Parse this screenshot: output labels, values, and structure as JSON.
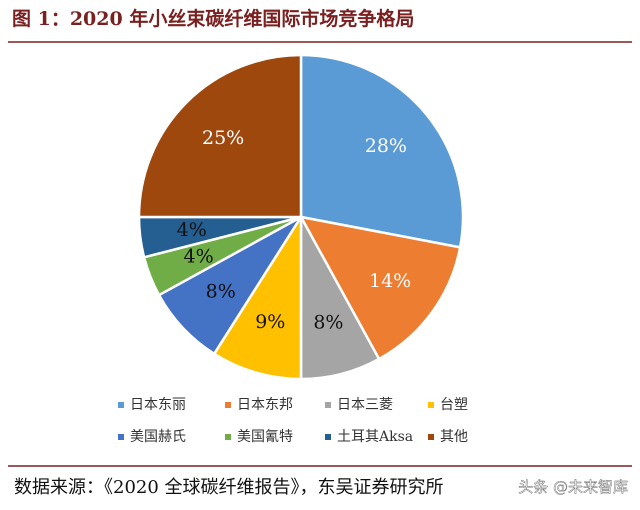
{
  "chart_data": {
    "type": "pie",
    "title": "图 1：2020 年小丝束碳纤维国际市场竞争格局",
    "categories": [
      "日本东丽",
      "日本东邦",
      "日本三菱",
      "台塑",
      "美国赫氏",
      "美国氰特",
      "土耳其Aksa",
      "其他"
    ],
    "values": [
      28,
      14,
      8,
      9,
      8,
      4,
      4,
      25
    ],
    "value_labels": [
      "28%",
      "14%",
      "8%",
      "9%",
      "8%",
      "4%",
      "4%",
      "25%"
    ],
    "colors": [
      "#5b9bd5",
      "#ed7d31",
      "#a5a5a5",
      "#ffc000",
      "#4472c4",
      "#70ad47",
      "#255e91",
      "#9e480e"
    ],
    "source": "数据来源：《2020 全球碳纤维报告》，东吴证券研究所",
    "watermark": "头条 @未来智库"
  }
}
